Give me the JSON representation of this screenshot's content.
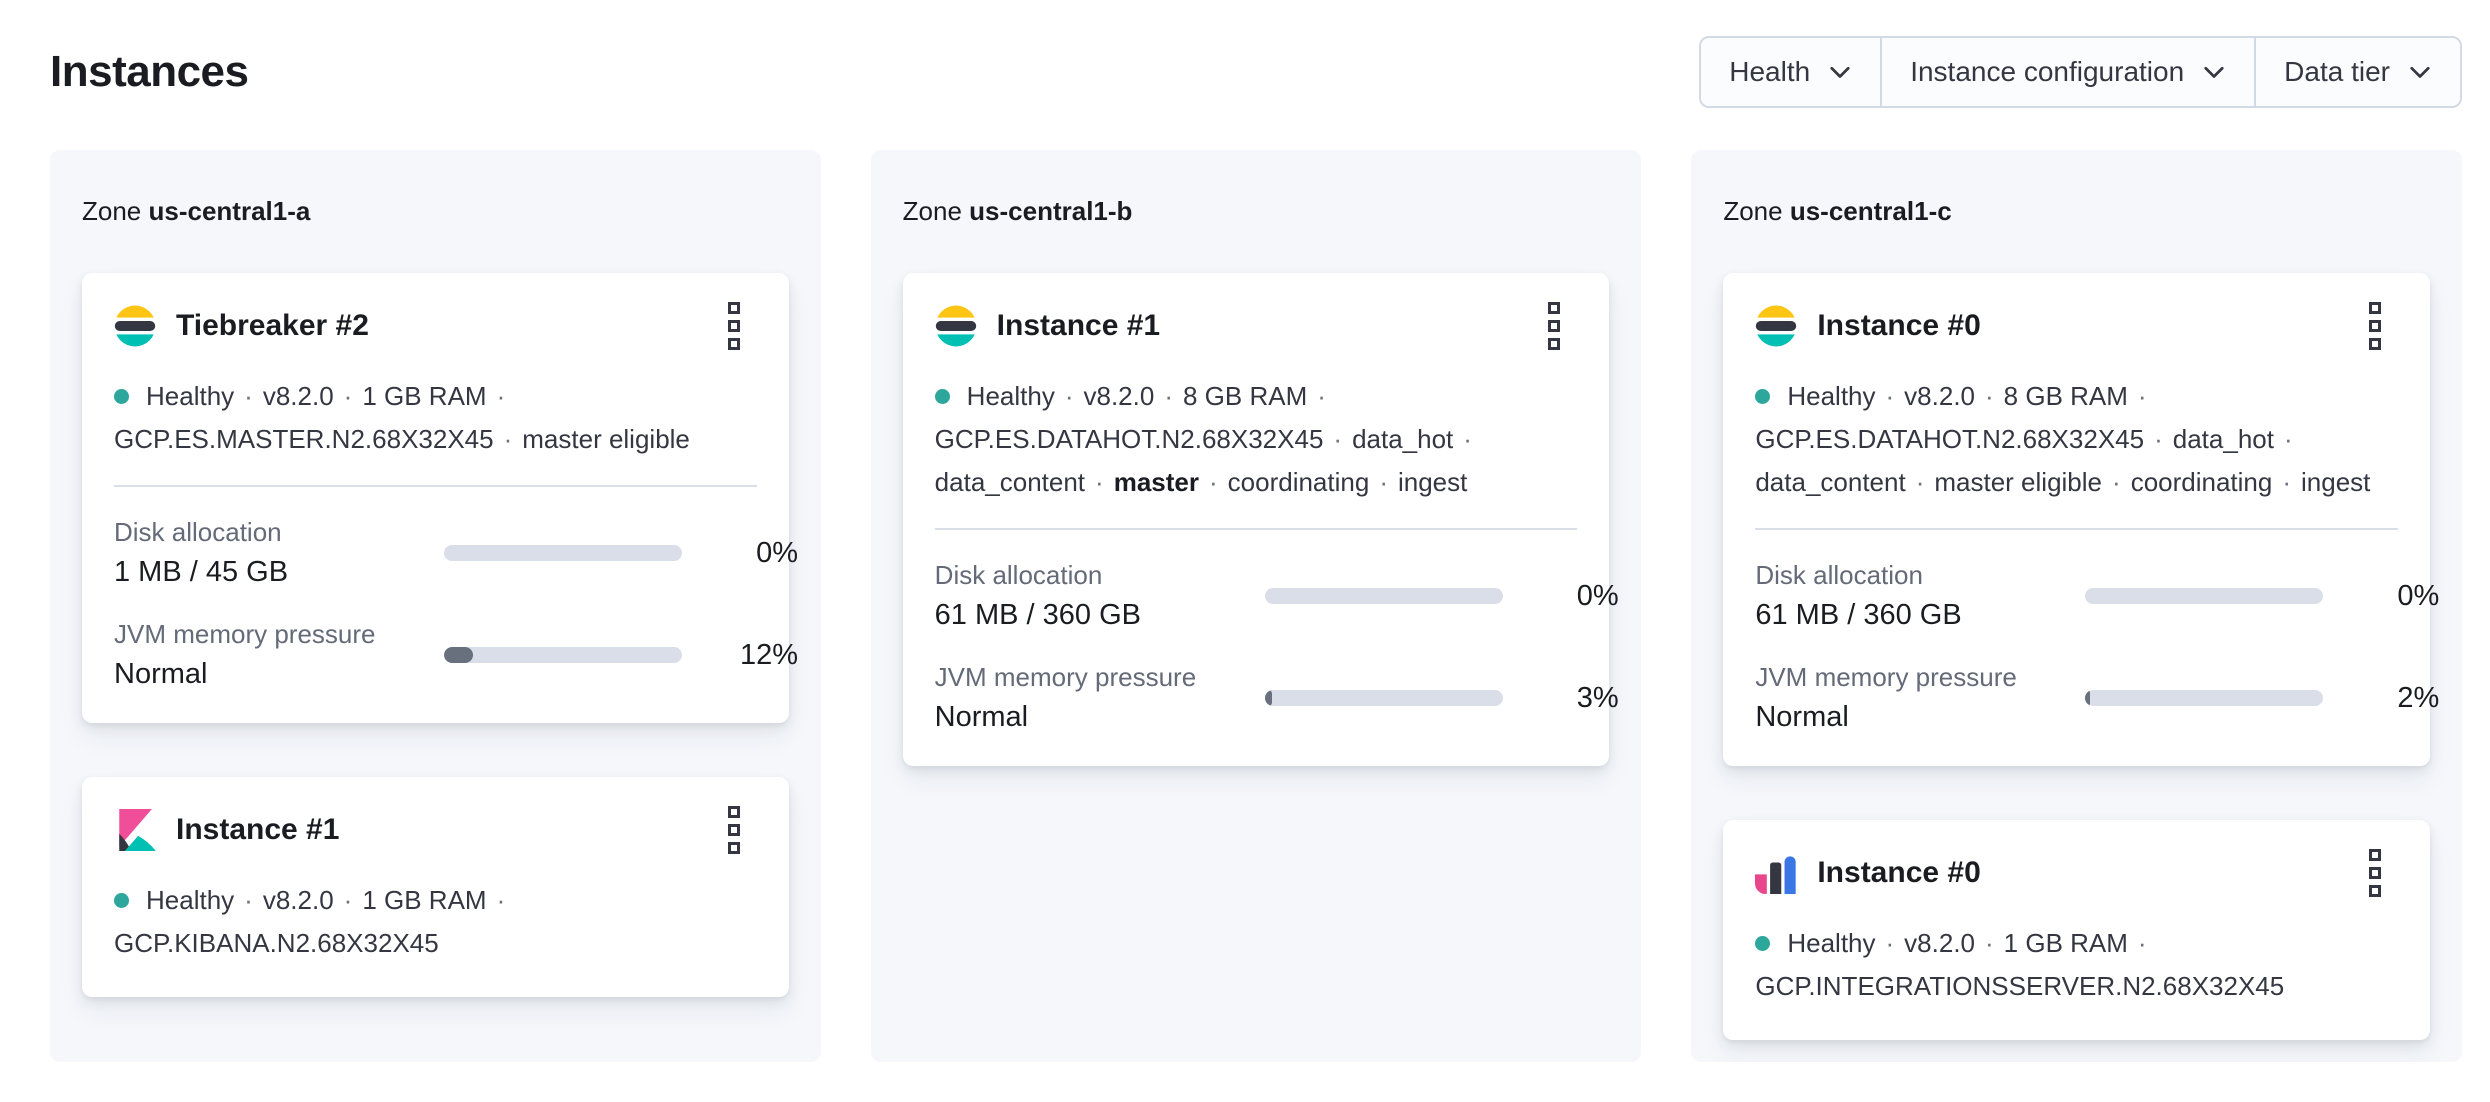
{
  "ui": {
    "separator": "·"
  },
  "page": {
    "title": "Instances"
  },
  "filters": [
    {
      "label": "Health"
    },
    {
      "label": "Instance configuration"
    },
    {
      "label": "Data tier"
    }
  ],
  "colors": {
    "health_healthy": "#2da79b",
    "logo_yellow": "#fec514",
    "logo_dark": "#343741",
    "logo_teal": "#00bfb3",
    "logo_pink": "#f04e98",
    "logo_magenta": "#e8478b",
    "logo_blue": "#3b77e4",
    "bar_track": "#d9dee9",
    "bar_fill": "#69707d",
    "zone_panel_bg": "#f5f7fb"
  },
  "zones": [
    {
      "label": "Zone",
      "name": "us-central1-a",
      "cards": [
        {
          "logo": "elasticsearch-logo",
          "title": "Tiebreaker #2",
          "status_lines": [
            {
              "segments": [
                {
                  "t": "Healthy"
                },
                {
                  "t": "v8.2.0"
                },
                {
                  "t": "1 GB RAM"
                }
              ],
              "trailing_sep": true
            },
            {
              "segments": [
                {
                  "t": "GCP.ES.MASTER.N2.68X32X45"
                },
                {
                  "t": "master eligible"
                }
              ],
              "trailing_sep": false
            }
          ],
          "metrics": [
            {
              "label": "Disk allocation",
              "value": "1 MB / 45 GB",
              "percent": 0,
              "percent_label": "0%"
            },
            {
              "label": "JVM memory pressure",
              "value": "Normal",
              "percent": 12,
              "percent_label": "12%"
            }
          ]
        },
        {
          "logo": "kibana-logo",
          "title": "Instance #1",
          "status_lines": [
            {
              "segments": [
                {
                  "t": "Healthy"
                },
                {
                  "t": "v8.2.0"
                },
                {
                  "t": "1 GB RAM"
                }
              ],
              "trailing_sep": true
            },
            {
              "segments": [
                {
                  "t": "GCP.KIBANA.N2.68X32X45"
                }
              ],
              "trailing_sep": false
            }
          ],
          "metrics": []
        }
      ]
    },
    {
      "label": "Zone",
      "name": "us-central1-b",
      "cards": [
        {
          "logo": "elasticsearch-logo",
          "title": "Instance #1",
          "status_lines": [
            {
              "segments": [
                {
                  "t": "Healthy"
                },
                {
                  "t": "v8.2.0"
                },
                {
                  "t": "8 GB RAM"
                }
              ],
              "trailing_sep": true
            },
            {
              "segments": [
                {
                  "t": "GCP.ES.DATAHOT.N2.68X32X45"
                },
                {
                  "t": "data_hot"
                }
              ],
              "trailing_sep": true
            },
            {
              "segments": [
                {
                  "t": "data_content"
                },
                {
                  "t": "master",
                  "bold": true
                },
                {
                  "t": "coordinating"
                },
                {
                  "t": "ingest"
                }
              ],
              "trailing_sep": false
            }
          ],
          "metrics": [
            {
              "label": "Disk allocation",
              "value": "61 MB / 360 GB",
              "percent": 0,
              "percent_label": "0%"
            },
            {
              "label": "JVM memory pressure",
              "value": "Normal",
              "percent": 3,
              "percent_label": "3%"
            }
          ]
        }
      ]
    },
    {
      "label": "Zone",
      "name": "us-central1-c",
      "cards": [
        {
          "logo": "elasticsearch-logo",
          "title": "Instance #0",
          "status_lines": [
            {
              "segments": [
                {
                  "t": "Healthy"
                },
                {
                  "t": "v8.2.0"
                },
                {
                  "t": "8 GB RAM"
                }
              ],
              "trailing_sep": true
            },
            {
              "segments": [
                {
                  "t": "GCP.ES.DATAHOT.N2.68X32X45"
                },
                {
                  "t": "data_hot"
                }
              ],
              "trailing_sep": true
            },
            {
              "segments": [
                {
                  "t": "data_content"
                },
                {
                  "t": "master eligible"
                },
                {
                  "t": "coordinating"
                },
                {
                  "t": "ingest"
                }
              ],
              "trailing_sep": false
            }
          ],
          "metrics": [
            {
              "label": "Disk allocation",
              "value": "61 MB / 360 GB",
              "percent": 0,
              "percent_label": "0%"
            },
            {
              "label": "JVM memory pressure",
              "value": "Normal",
              "percent": 2,
              "percent_label": "2%"
            }
          ]
        },
        {
          "logo": "integrations-server-logo",
          "title": "Instance #0",
          "status_lines": [
            {
              "segments": [
                {
                  "t": "Healthy"
                },
                {
                  "t": "v8.2.0"
                },
                {
                  "t": "1 GB RAM"
                }
              ],
              "trailing_sep": true
            },
            {
              "segments": [
                {
                  "t": "GCP.INTEGRATIONSSERVER.N2.68X32X45"
                }
              ],
              "trailing_sep": false
            }
          ],
          "metrics": []
        }
      ]
    }
  ]
}
